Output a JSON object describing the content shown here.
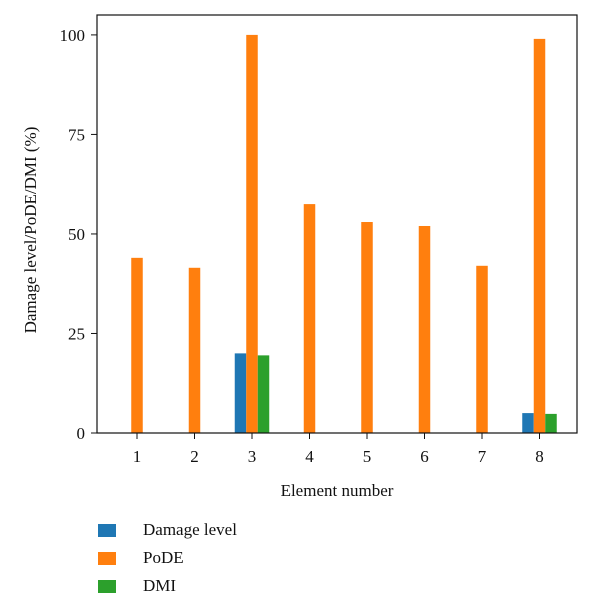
{
  "chart_data": {
    "type": "bar",
    "xlabel": "Element number",
    "ylabel": "Damage level/PoDE/DMI (%)",
    "categories": [
      "1",
      "2",
      "3",
      "4",
      "5",
      "6",
      "7",
      "8"
    ],
    "ylim": [
      0,
      105
    ],
    "yticks": [
      0,
      25,
      50,
      75,
      100
    ],
    "grid": false,
    "legend_position": "bottom-left (below plot)",
    "series": [
      {
        "name": "Damage level",
        "color": "#1f77b4",
        "values": [
          0,
          0,
          20,
          0,
          0,
          0,
          0,
          5
        ]
      },
      {
        "name": "PoDE",
        "color": "#ff7f0e",
        "values": [
          44,
          41.5,
          100,
          57.5,
          53,
          52,
          42,
          99
        ]
      },
      {
        "name": "DMI",
        "color": "#2ca02c",
        "values": [
          0,
          0,
          19.5,
          0,
          0,
          0,
          0,
          4.8
        ]
      }
    ]
  }
}
